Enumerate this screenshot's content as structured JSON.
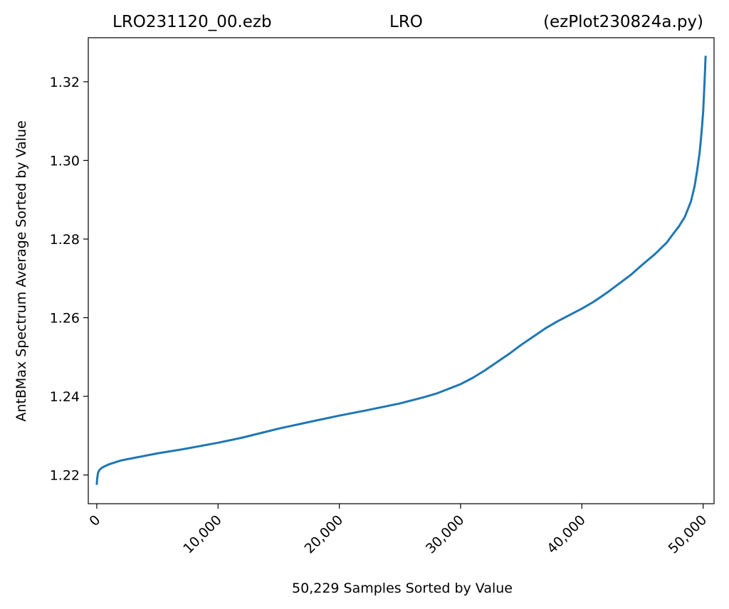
{
  "chart_data": {
    "type": "line",
    "title_parts": [
      "LRO231120_00.ezb",
      "LRO",
      "(ezPlot230824a.py)"
    ],
    "xlabel": "50,229 Samples Sorted by Value",
    "ylabel": "AntBMax Spectrum Average Sorted by Value",
    "xlim": [
      -700,
      50900
    ],
    "ylim": [
      1.2127,
      1.3312
    ],
    "xticks": [
      0,
      10000,
      20000,
      30000,
      40000,
      50000
    ],
    "xtick_labels": [
      "0",
      "10,000",
      "20,000",
      "30,000",
      "40,000",
      "50,000"
    ],
    "yticks": [
      1.22,
      1.24,
      1.26,
      1.28,
      1.3,
      1.32
    ],
    "ytick_labels": [
      "1.22",
      "1.24",
      "1.26",
      "1.28",
      "1.30",
      "1.32"
    ],
    "grid": false,
    "line_color": "#1f77b4",
    "series": [
      {
        "x": [
          0,
          30,
          100,
          200,
          400,
          700,
          1000,
          1500,
          2000,
          3000,
          4000,
          5000,
          7000,
          10000,
          12000,
          15000,
          18000,
          20000,
          22000,
          25000,
          27000,
          28000,
          29000,
          30000,
          31000,
          32000,
          33000,
          34000,
          35000,
          36000,
          37000,
          38000,
          39000,
          40000,
          41000,
          42000,
          43000,
          44000,
          45000,
          46000,
          47000,
          47500,
          48000,
          48500,
          49000,
          49300,
          49500,
          49700,
          49800,
          49900,
          50000,
          50080,
          50150,
          50200,
          50229
        ],
        "values": [
          1.2175,
          1.219,
          1.2205,
          1.2212,
          1.2218,
          1.2223,
          1.2227,
          1.2232,
          1.2237,
          1.2243,
          1.2249,
          1.2255,
          1.2265,
          1.2282,
          1.2295,
          1.2318,
          1.2338,
          1.2351,
          1.2363,
          1.2382,
          1.2398,
          1.2407,
          1.2419,
          1.2431,
          1.2447,
          1.2466,
          1.2487,
          1.2508,
          1.2531,
          1.2552,
          1.2573,
          1.2591,
          1.2607,
          1.2623,
          1.2641,
          1.2662,
          1.2685,
          1.2708,
          1.2735,
          1.2761,
          1.2791,
          1.2812,
          1.2832,
          1.2857,
          1.2896,
          1.2935,
          1.2973,
          1.3017,
          1.3048,
          1.3083,
          1.3123,
          1.3175,
          1.3223,
          1.3263,
          1.3266
        ]
      }
    ]
  }
}
